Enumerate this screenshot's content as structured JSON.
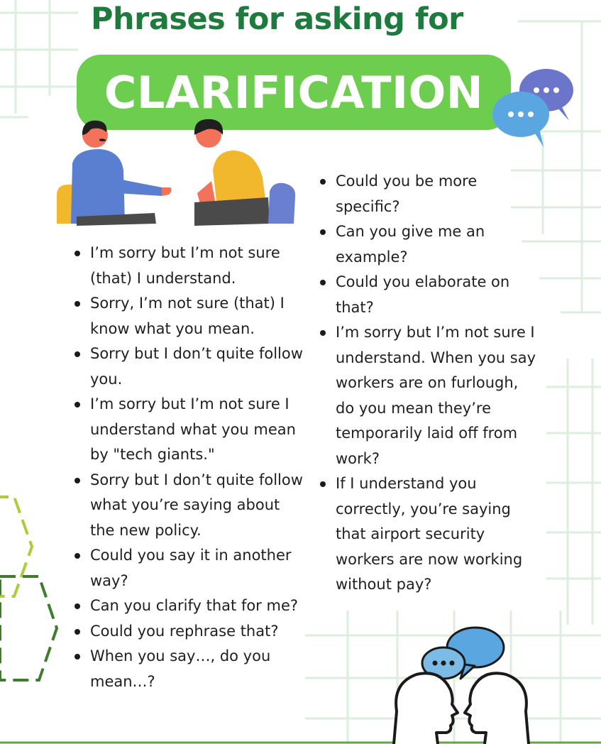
{
  "title": "Phrases for asking for",
  "banner": "CLARIFICATION",
  "icons": {
    "chat": "chat-bubbles-icon",
    "people": "two-people-talking-illustration",
    "heads": "two-heads-speech-icon"
  },
  "colors": {
    "title": "#1f7a3e",
    "banner": "#6ccd4f",
    "bubble_blue": "#5aa6e0",
    "bubble_purple": "#6b75c9",
    "grid": "#dceedd"
  },
  "phrases_left": [
    "I’m sorry but I’m not sure (that) I understand.",
    "Sorry, I’m not sure (that) I know what you mean.",
    "Sorry but I don’t quite follow you.",
    "I’m sorry but I’m not sure I understand what you mean by \"tech giants.\"",
    "Sorry but I don’t quite follow what you’re saying about the new policy.",
    "Could you say it in another way?",
    "Can you clarify that for me?",
    "Could you rephrase that?",
    "When you say…, do you mean…?"
  ],
  "phrases_right": [
    "Could you be more specific?",
    "Can you give me an example?",
    "Could you elaborate on that?",
    "I’m sorry but I’m not sure I understand. When you say workers are on furlough, do you mean they’re temporarily laid off from work?",
    "If I understand you correctly, you’re saying that airport security workers are now working without pay?"
  ]
}
